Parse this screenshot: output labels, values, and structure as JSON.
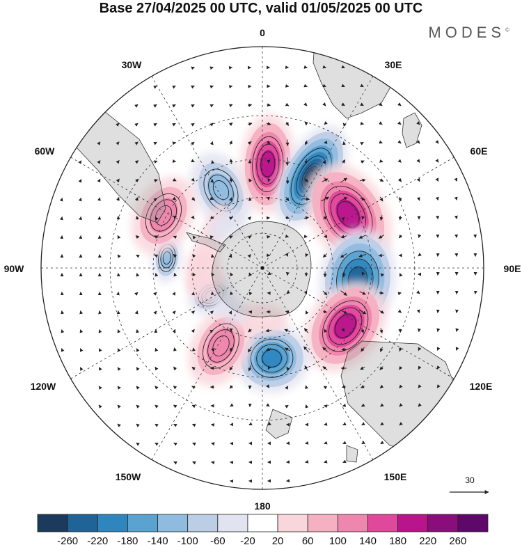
{
  "title": "Base 27/04/2025 00 UTC, valid 01/05/2025 00 UTC",
  "brand": "MODES",
  "brand_mark": "©",
  "longitude_labels": {
    "lon_0": "0",
    "lon_30e": "30E",
    "lon_60e": "60E",
    "lon_90e": "90E",
    "lon_120e": "120E",
    "lon_150e": "150E",
    "lon_180": "180",
    "lon_150w": "150W",
    "lon_120w": "120W",
    "lon_90w": "90W",
    "lon_60w": "60W",
    "lon_30w": "30W"
  },
  "reference_vector": "30",
  "colorbar": {
    "tick_labels": [
      "-260",
      "-220",
      "-180",
      "-140",
      "-100",
      "-60",
      "-20",
      "20",
      "60",
      "100",
      "140",
      "180",
      "220",
      "260"
    ],
    "colors": [
      "#1b3a5c",
      "#1f6399",
      "#2f86bf",
      "#5aa3d1",
      "#8fbbdf",
      "#bccde6",
      "#e2e3f0",
      "#ffffff",
      "#f9d6dc",
      "#f5b0c2",
      "#ef86ad",
      "#e0489b",
      "#b8158c",
      "#8a0d7c",
      "#5e086a"
    ]
  },
  "anomalies": [
    {
      "id": "neg-atlantic-30w",
      "lon": -28,
      "lat": -53,
      "value": -120,
      "rx": 40,
      "ry": 58
    },
    {
      "id": "pos-atlantic-0",
      "lon": 3,
      "lat": -47,
      "value": 190,
      "rx": 40,
      "ry": 72
    },
    {
      "id": "neg-atlantic-20e",
      "lon": 28,
      "lat": -47,
      "value": -260,
      "rx": 42,
      "ry": 80
    },
    {
      "id": "pos-indian-50e",
      "lon": 58,
      "lat": -48,
      "value": 200,
      "rx": 80,
      "ry": 55
    },
    {
      "id": "neg-indian-95e",
      "lon": 97,
      "lat": -50,
      "value": -230,
      "rx": 75,
      "ry": 55
    },
    {
      "id": "pos-australia-125e",
      "lon": 125,
      "lat": -48,
      "value": 200,
      "rx": 72,
      "ry": 52
    },
    {
      "id": "neg-tasman-165e",
      "lon": 174,
      "lat": -52,
      "value": -200,
      "rx": 55,
      "ry": 50
    },
    {
      "id": "pos-pacific-150w",
      "lon": -152,
      "lat": -53,
      "value": 130,
      "rx": 42,
      "ry": 62
    },
    {
      "id": "neg-pacific-115w",
      "lon": -118,
      "lat": -65,
      "value": -100,
      "rx": 26,
      "ry": 34
    },
    {
      "id": "neg-pacific-90w",
      "lon": -84,
      "lat": -50,
      "value": -110,
      "rx": 36,
      "ry": 22
    },
    {
      "id": "pos-samerica-60w",
      "lon": -62,
      "lat": -44,
      "value": 120,
      "rx": 60,
      "ry": 42
    },
    {
      "id": "pos-drake-70w",
      "lon": -70,
      "lat": -65,
      "value": 40,
      "rx": 70,
      "ry": 18
    },
    {
      "id": "pos-bellingshausen",
      "lon": -100,
      "lat": -65,
      "value": 50,
      "rx": 40,
      "ry": 26
    },
    {
      "id": "neg-weddell",
      "lon": -40,
      "lat": -66,
      "value": -40,
      "rx": 30,
      "ry": 18
    },
    {
      "id": "pos-ross",
      "lon": -178,
      "lat": -68,
      "value": 40,
      "rx": 40,
      "ry": 22
    },
    {
      "id": "neg-amundsen",
      "lon": -140,
      "lat": -68,
      "value": -40,
      "rx": 28,
      "ry": 18
    }
  ]
}
